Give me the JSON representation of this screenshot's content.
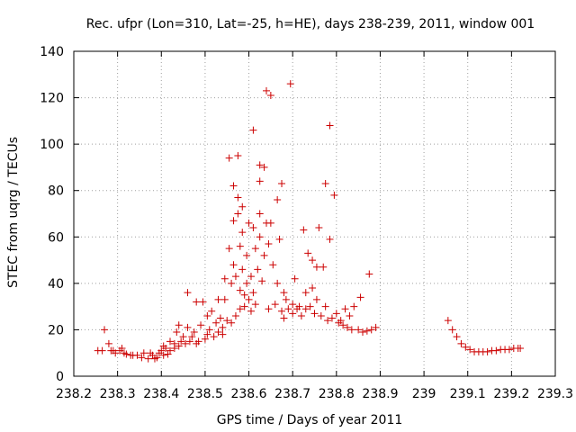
{
  "chart_data": {
    "type": "scatter",
    "title": "Rec. ufpr (Lon=310, Lat=-25, h=HE), days 238-239, 2011, window 001",
    "xlabel": "GPS time / Days of year 2011",
    "ylabel": "STEC from uqrg / TECUs",
    "xlim": [
      238.2,
      239.3
    ],
    "ylim": [
      0,
      140
    ],
    "xticks": [
      238.2,
      238.3,
      238.4,
      238.5,
      238.6,
      238.7,
      238.8,
      238.9,
      239,
      239.1,
      239.2,
      239.3
    ],
    "xtick_labels": [
      "238.2",
      "238.3",
      "238.4",
      "238.5",
      "238.6",
      "238.7",
      "238.8",
      "238.9",
      "239",
      "239.1",
      "239.2",
      "239.3"
    ],
    "yticks": [
      0,
      20,
      40,
      60,
      80,
      100,
      120,
      140
    ],
    "ytick_labels": [
      "0",
      "20",
      "40",
      "60",
      "80",
      "100",
      "120",
      "140"
    ],
    "grid": true,
    "marker": "+",
    "color": "#cc0000",
    "series": [
      {
        "points": [
          [
            238.255,
            11
          ],
          [
            238.265,
            11
          ],
          [
            238.27,
            20
          ],
          [
            238.28,
            14
          ],
          [
            238.285,
            11
          ],
          [
            238.29,
            11
          ],
          [
            238.295,
            10
          ],
          [
            238.305,
            11
          ],
          [
            238.31,
            12
          ],
          [
            238.315,
            10
          ],
          [
            238.32,
            9.5
          ],
          [
            238.33,
            9
          ],
          [
            238.335,
            9
          ],
          [
            238.345,
            9
          ],
          [
            238.355,
            8
          ],
          [
            238.36,
            10
          ],
          [
            238.37,
            7.5
          ],
          [
            238.375,
            10
          ],
          [
            238.38,
            9
          ],
          [
            238.385,
            7.5
          ],
          [
            238.39,
            8
          ],
          [
            238.395,
            10
          ],
          [
            238.4,
            11
          ],
          [
            238.405,
            9
          ],
          [
            238.405,
            13
          ],
          [
            238.41,
            12
          ],
          [
            238.415,
            9.5
          ],
          [
            238.42,
            11
          ],
          [
            238.42,
            15
          ],
          [
            238.43,
            12
          ],
          [
            238.43,
            14
          ],
          [
            238.435,
            19
          ],
          [
            238.44,
            22
          ],
          [
            238.44,
            13
          ],
          [
            238.445,
            15
          ],
          [
            238.45,
            17
          ],
          [
            238.455,
            14
          ],
          [
            238.46,
            21
          ],
          [
            238.46,
            36
          ],
          [
            238.465,
            15
          ],
          [
            238.47,
            17
          ],
          [
            238.475,
            19
          ],
          [
            238.48,
            32
          ],
          [
            238.48,
            14
          ],
          [
            238.485,
            15
          ],
          [
            238.49,
            22
          ],
          [
            238.495,
            32
          ],
          [
            238.5,
            16
          ],
          [
            238.505,
            26
          ],
          [
            238.505,
            18
          ],
          [
            238.51,
            20
          ],
          [
            238.515,
            28
          ],
          [
            238.52,
            17
          ],
          [
            238.525,
            23
          ],
          [
            238.53,
            33
          ],
          [
            238.53,
            19
          ],
          [
            238.535,
            25
          ],
          [
            238.54,
            21
          ],
          [
            238.54,
            18
          ],
          [
            238.545,
            42
          ],
          [
            238.545,
            33
          ],
          [
            238.55,
            24
          ],
          [
            238.555,
            94
          ],
          [
            238.555,
            55
          ],
          [
            238.56,
            23
          ],
          [
            238.56,
            40
          ],
          [
            238.565,
            82
          ],
          [
            238.565,
            67
          ],
          [
            238.565,
            48
          ],
          [
            238.57,
            26
          ],
          [
            238.57,
            43
          ],
          [
            238.575,
            95
          ],
          [
            238.575,
            77
          ],
          [
            238.575,
            70
          ],
          [
            238.58,
            56
          ],
          [
            238.58,
            29
          ],
          [
            238.58,
            37
          ],
          [
            238.585,
            73
          ],
          [
            238.585,
            62
          ],
          [
            238.585,
            46
          ],
          [
            238.59,
            35
          ],
          [
            238.59,
            30
          ],
          [
            238.595,
            40
          ],
          [
            238.595,
            52
          ],
          [
            238.6,
            66
          ],
          [
            238.6,
            33
          ],
          [
            238.605,
            43
          ],
          [
            238.605,
            28
          ],
          [
            238.61,
            106
          ],
          [
            238.61,
            64
          ],
          [
            238.61,
            36
          ],
          [
            238.615,
            55
          ],
          [
            238.615,
            31
          ],
          [
            238.62,
            46
          ],
          [
            238.625,
            84
          ],
          [
            238.625,
            91
          ],
          [
            238.625,
            70
          ],
          [
            238.625,
            60
          ],
          [
            238.63,
            41
          ],
          [
            238.635,
            90
          ],
          [
            238.635,
            52
          ],
          [
            238.64,
            123
          ],
          [
            238.64,
            66
          ],
          [
            238.645,
            57
          ],
          [
            238.645,
            29
          ],
          [
            238.65,
            121
          ],
          [
            238.65,
            66
          ],
          [
            238.655,
            48
          ],
          [
            238.66,
            31
          ],
          [
            238.665,
            76
          ],
          [
            238.665,
            40
          ],
          [
            238.67,
            59
          ],
          [
            238.675,
            83
          ],
          [
            238.675,
            28
          ],
          [
            238.68,
            36
          ],
          [
            238.68,
            25
          ],
          [
            238.685,
            33
          ],
          [
            238.69,
            29
          ],
          [
            238.695,
            126
          ],
          [
            238.7,
            31
          ],
          [
            238.7,
            27
          ],
          [
            238.705,
            42
          ],
          [
            238.71,
            29
          ],
          [
            238.715,
            30
          ],
          [
            238.72,
            26
          ],
          [
            238.725,
            63
          ],
          [
            238.73,
            29
          ],
          [
            238.73,
            36
          ],
          [
            238.735,
            53
          ],
          [
            238.74,
            30
          ],
          [
            238.745,
            50
          ],
          [
            238.745,
            38
          ],
          [
            238.75,
            27
          ],
          [
            238.755,
            47
          ],
          [
            238.755,
            33
          ],
          [
            238.76,
            64
          ],
          [
            238.765,
            26
          ],
          [
            238.77,
            47
          ],
          [
            238.775,
            83
          ],
          [
            238.775,
            30
          ],
          [
            238.78,
            24
          ],
          [
            238.785,
            59
          ],
          [
            238.785,
            108
          ],
          [
            238.79,
            25
          ],
          [
            238.795,
            78
          ],
          [
            238.8,
            27
          ],
          [
            238.805,
            23
          ],
          [
            238.81,
            24
          ],
          [
            238.815,
            22
          ],
          [
            238.82,
            29
          ],
          [
            238.825,
            21
          ],
          [
            238.83,
            26
          ],
          [
            238.835,
            20
          ],
          [
            238.84,
            30
          ],
          [
            238.85,
            20
          ],
          [
            238.855,
            34
          ],
          [
            238.86,
            19
          ],
          [
            238.87,
            19.5
          ],
          [
            238.875,
            44
          ],
          [
            238.88,
            20
          ],
          [
            238.89,
            21
          ],
          [
            239.055,
            24
          ],
          [
            239.065,
            20
          ],
          [
            239.075,
            17
          ],
          [
            239.085,
            14
          ],
          [
            239.095,
            12.5
          ],
          [
            239.105,
            11.5
          ],
          [
            239.115,
            10.5
          ],
          [
            239.125,
            10.5
          ],
          [
            239.135,
            10.5
          ],
          [
            239.145,
            10.5
          ],
          [
            239.155,
            11
          ],
          [
            239.165,
            11
          ],
          [
            239.175,
            11.5
          ],
          [
            239.185,
            11.5
          ],
          [
            239.195,
            11.5
          ],
          [
            239.205,
            12
          ],
          [
            239.215,
            12
          ],
          [
            239.22,
            12
          ]
        ]
      }
    ]
  }
}
